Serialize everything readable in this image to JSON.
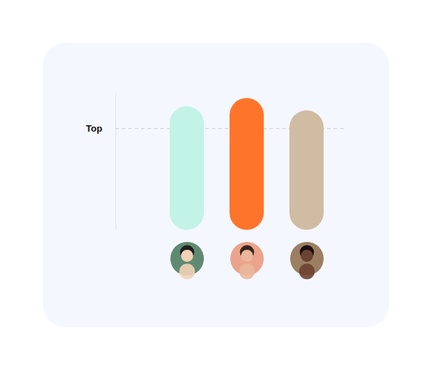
{
  "chart_data": {
    "type": "bar",
    "categories": [
      null,
      null,
      null
    ],
    "values": [
      90,
      96,
      87
    ],
    "colors": [
      "#c2f3e6",
      "#ff742b",
      "#d0bca3"
    ],
    "ylim": [
      0,
      100
    ],
    "yticks": [],
    "tick_labels": false,
    "reference_lines": [
      {
        "label": "Top",
        "value": 74
      }
    ]
  }
}
